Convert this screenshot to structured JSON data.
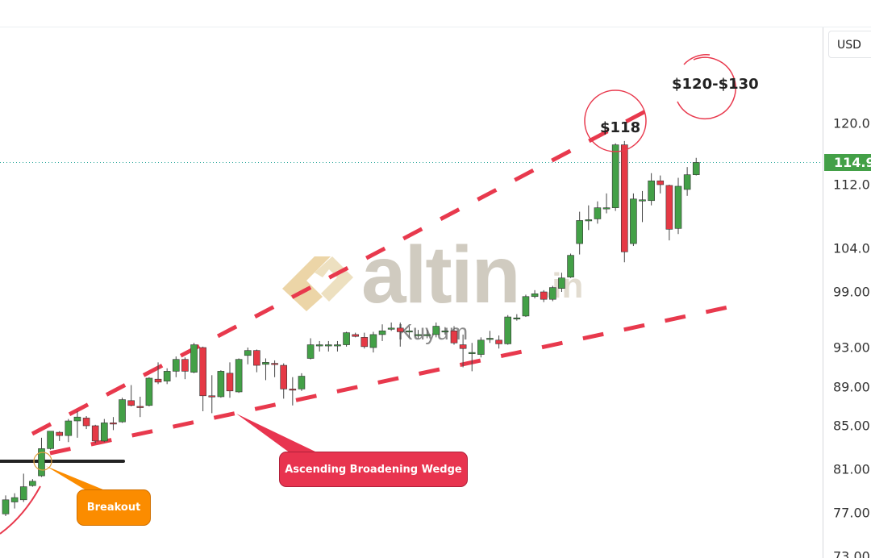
{
  "axis": {
    "currency": "USD",
    "last_price": "114.9",
    "ticks": [
      120,
      112,
      104,
      99,
      93,
      89,
      85,
      81,
      77,
      73
    ],
    "tick_labels": [
      "120.0",
      "112.0",
      "104.0",
      "99.00",
      "93.00",
      "89.00",
      "85.00",
      "81.00",
      "77.00",
      "73.00"
    ]
  },
  "watermark": {
    "brand": "altin",
    "suffix": ".in",
    "sub": "Kuyum"
  },
  "annotations": {
    "target1": "$118",
    "target2": "$120-$130",
    "breakout": "Breakout",
    "pattern": "Ascending Broadening Wedge"
  },
  "colors": {
    "up": "#43a047",
    "down": "#e53945",
    "trendline": "#e8394d",
    "breakout_callout": "#fb8c00",
    "pattern_callout": "#e8344f",
    "last_price_line": "#26a69a"
  },
  "chart_data": {
    "type": "candlestick",
    "y_scale": "log",
    "candle_format": [
      "open",
      "high",
      "low",
      "close"
    ],
    "candles": [
      [
        76.9,
        78.6,
        76.7,
        78.2
      ],
      [
        78.0,
        78.8,
        77.4,
        78.4
      ],
      [
        78.2,
        80.6,
        78.0,
        79.4
      ],
      [
        79.5,
        80.1,
        79.4,
        79.9
      ],
      [
        80.4,
        83.9,
        80.3,
        82.9
      ],
      [
        82.9,
        84.5,
        82.8,
        84.5
      ],
      [
        84.4,
        84.5,
        83.6,
        84.1
      ],
      [
        84.1,
        85.7,
        83.5,
        85.5
      ],
      [
        85.5,
        86.5,
        83.9,
        85.9
      ],
      [
        85.8,
        86.0,
        84.7,
        85.0
      ],
      [
        85.0,
        85.1,
        83.4,
        83.6
      ],
      [
        83.6,
        85.7,
        83.5,
        85.3
      ],
      [
        85.3,
        85.9,
        84.6,
        85.2
      ],
      [
        85.4,
        87.9,
        85.3,
        87.7
      ],
      [
        87.6,
        89.2,
        87.0,
        87.1
      ],
      [
        87.0,
        88.0,
        85.9,
        86.9
      ],
      [
        87.1,
        90.0,
        87.0,
        89.9
      ],
      [
        89.8,
        91.5,
        89.3,
        89.5
      ],
      [
        89.6,
        90.9,
        89.3,
        90.6
      ],
      [
        90.6,
        92.1,
        90.0,
        91.8
      ],
      [
        91.8,
        92.0,
        89.8,
        90.6
      ],
      [
        90.5,
        93.5,
        90.4,
        93.3
      ],
      [
        93.0,
        93.1,
        86.5,
        88.1
      ],
      [
        88.1,
        90.2,
        86.3,
        88.0
      ],
      [
        88.0,
        90.7,
        87.9,
        90.6
      ],
      [
        90.4,
        91.5,
        87.9,
        88.6
      ],
      [
        88.5,
        91.9,
        88.4,
        91.8
      ],
      [
        92.2,
        93.0,
        91.3,
        92.7
      ],
      [
        92.7,
        92.8,
        90.5,
        91.2
      ],
      [
        91.3,
        91.9,
        89.7,
        91.5
      ],
      [
        91.4,
        91.7,
        90.0,
        91.3
      ],
      [
        91.2,
        91.4,
        87.8,
        88.8
      ],
      [
        88.8,
        90.0,
        87.1,
        88.7
      ],
      [
        88.8,
        90.4,
        88.6,
        90.1
      ],
      [
        91.9,
        94.0,
        91.8,
        93.3
      ],
      [
        93.2,
        93.7,
        92.6,
        93.3
      ],
      [
        93.2,
        93.7,
        92.6,
        93.3
      ],
      [
        93.2,
        93.7,
        92.6,
        93.3
      ],
      [
        93.3,
        94.7,
        93.1,
        94.6
      ],
      [
        94.4,
        94.6,
        94.1,
        94.2
      ],
      [
        94.1,
        94.6,
        92.9,
        93.1
      ],
      [
        93.0,
        94.7,
        92.5,
        94.4
      ],
      [
        94.4,
        95.5,
        93.7,
        94.8
      ],
      [
        95.0,
        95.7,
        94.8,
        95.1
      ],
      [
        95.1,
        95.7,
        93.1,
        94.7
      ],
      [
        94.7,
        95.3,
        94.1,
        94.8
      ],
      [
        94.4,
        94.9,
        94.0,
        94.4
      ],
      [
        94.4,
        94.9,
        94.0,
        94.4
      ],
      [
        94.4,
        95.7,
        94.1,
        95.3
      ],
      [
        94.8,
        95.2,
        94.4,
        94.8
      ],
      [
        94.8,
        95.3,
        93.3,
        93.5
      ],
      [
        93.3,
        94.4,
        91.0,
        92.9
      ],
      [
        92.5,
        93.5,
        90.6,
        92.5
      ],
      [
        92.3,
        94.1,
        92.0,
        93.8
      ],
      [
        94.0,
        94.8,
        93.5,
        94.0
      ],
      [
        93.8,
        94.3,
        92.9,
        93.4
      ],
      [
        93.4,
        96.5,
        93.3,
        96.3
      ],
      [
        96.2,
        96.6,
        95.9,
        96.2
      ],
      [
        96.4,
        98.7,
        96.3,
        98.5
      ],
      [
        98.5,
        99.2,
        98.3,
        98.8
      ],
      [
        99.0,
        99.2,
        97.9,
        98.2
      ],
      [
        98.2,
        99.7,
        98.0,
        99.5
      ],
      [
        99.4,
        101.2,
        99.0,
        100.6
      ],
      [
        100.7,
        103.4,
        100.6,
        103.2
      ],
      [
        104.6,
        108.6,
        103.3,
        107.5
      ],
      [
        107.6,
        109.4,
        106.3,
        107.6
      ],
      [
        107.7,
        109.9,
        107.1,
        109.1
      ],
      [
        109.1,
        110.9,
        108.4,
        109.1
      ],
      [
        109.1,
        117.4,
        108.7,
        117.2
      ],
      [
        117.2,
        117.7,
        102.4,
        103.6
      ],
      [
        104.6,
        110.9,
        104.3,
        110.2
      ],
      [
        110.1,
        111.2,
        107.3,
        110.1
      ],
      [
        110.0,
        113.5,
        109.4,
        112.5
      ],
      [
        112.5,
        113.2,
        110.9,
        112.0
      ],
      [
        111.9,
        112.0,
        105.0,
        106.4
      ],
      [
        106.5,
        112.9,
        105.8,
        111.8
      ],
      [
        111.4,
        114.3,
        110.6,
        113.3
      ],
      [
        113.3,
        115.5,
        113.2,
        114.9
      ]
    ]
  }
}
